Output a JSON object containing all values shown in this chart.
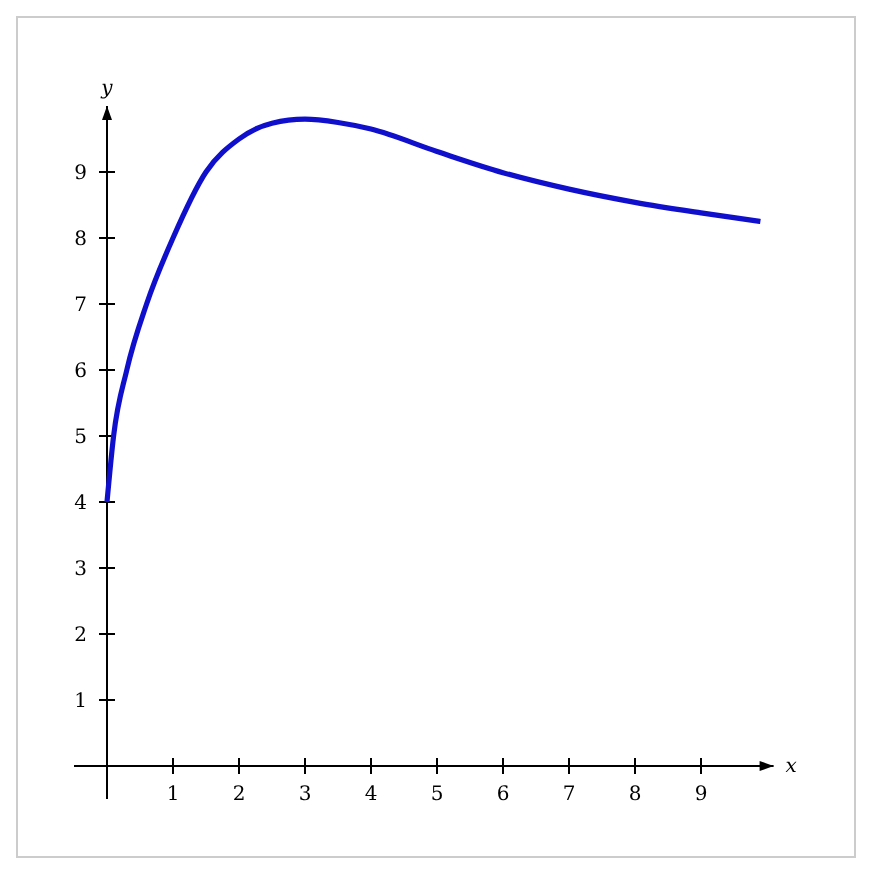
{
  "chart_data": {
    "type": "line",
    "xlabel": "x",
    "ylabel": "y",
    "xlim": [
      -0.5,
      10.1
    ],
    "ylim": [
      -0.5,
      10
    ],
    "xticks": [
      1,
      2,
      3,
      4,
      5,
      6,
      7,
      8,
      9
    ],
    "yticks": [
      1,
      2,
      3,
      4,
      5,
      6,
      7,
      8,
      9
    ],
    "grid": false,
    "x": [
      0,
      0.1,
      0.3,
      0.6,
      1,
      1.5,
      2,
      2.5,
      3,
      3.5,
      4,
      5,
      6,
      7,
      8,
      9,
      9.9
    ],
    "series": [
      {
        "color": "#1010cc",
        "values": [
          4,
          5,
          6,
          7,
          8,
          9,
          9.5,
          9.74,
          9.8,
          9.75,
          9.65,
          9.31,
          8.99,
          8.74,
          8.54,
          8.38,
          8.25
        ]
      }
    ]
  }
}
